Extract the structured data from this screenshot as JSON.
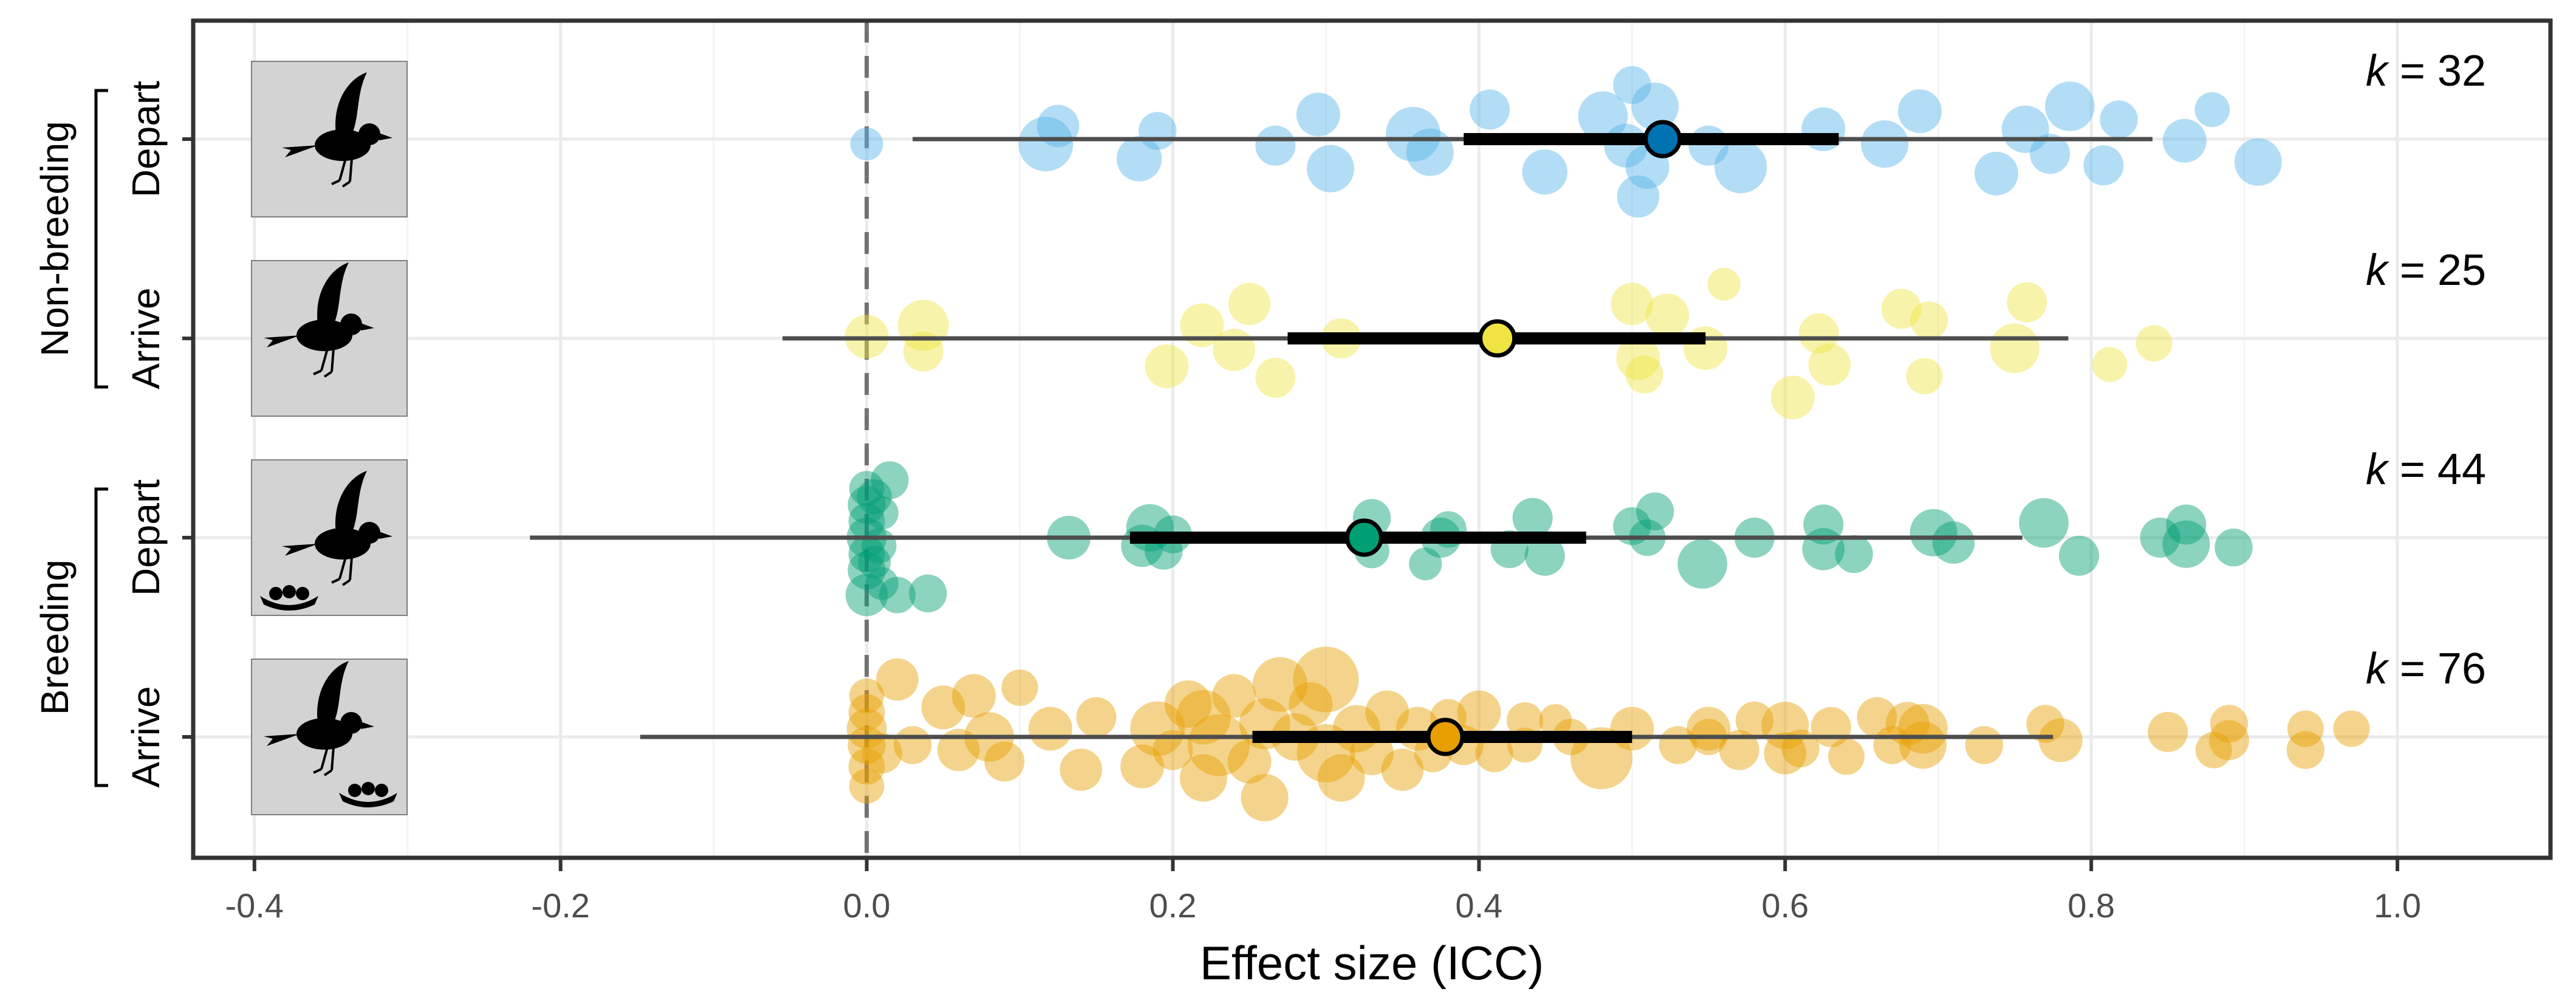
{
  "chart_data": {
    "type": "scatter",
    "subtype": "forest-orchard",
    "xlabel": "Effect size (ICC)",
    "xlim": [
      -0.44,
      1.1
    ],
    "xticks": [
      -0.4,
      -0.2,
      0.0,
      0.2,
      0.4,
      0.6,
      0.8,
      1.0
    ],
    "xtick_labels": [
      "-0.4",
      "-0.2",
      "0.0",
      "0.2",
      "0.4",
      "0.6",
      "0.8",
      "1.0"
    ],
    "reference_line": 0.0,
    "grid": true,
    "groups": [
      {
        "label": "Non-breeding",
        "rows": [
          "Depart",
          "Arrive"
        ]
      },
      {
        "label": "Breeding",
        "rows": [
          "Depart",
          "Arrive"
        ]
      }
    ],
    "series": [
      {
        "group": "Non-breeding",
        "row": "Depart",
        "k_label": "k = 32",
        "icon": "bird-departing-icon",
        "color": "#0072B2",
        "point_color": "#56B4E9",
        "estimate": 0.52,
        "ci": [
          0.39,
          0.635
        ],
        "pi": [
          0.03,
          0.84
        ],
        "points": [
          [
            0.0,
            0.03,
            0.15
          ],
          [
            0.117,
            0.03,
            0.45
          ],
          [
            0.125,
            -0.08,
            0.28
          ],
          [
            0.178,
            0.12,
            0.32
          ],
          [
            0.19,
            -0.05,
            0.22
          ],
          [
            0.267,
            0.04,
            0.25
          ],
          [
            0.295,
            -0.15,
            0.3
          ],
          [
            0.303,
            0.18,
            0.35
          ],
          [
            0.357,
            -0.03,
            0.45
          ],
          [
            0.368,
            0.08,
            0.35
          ],
          [
            0.407,
            -0.18,
            0.25
          ],
          [
            0.443,
            0.2,
            0.32
          ],
          [
            0.481,
            -0.14,
            0.38
          ],
          [
            0.496,
            0.04,
            0.3
          ],
          [
            0.5,
            -0.33,
            0.22
          ],
          [
            0.504,
            0.35,
            0.28
          ],
          [
            0.51,
            0.17,
            0.3
          ],
          [
            0.515,
            -0.2,
            0.35
          ],
          [
            0.55,
            0.04,
            0.25
          ],
          [
            0.571,
            0.17,
            0.42
          ],
          [
            0.625,
            -0.06,
            0.3
          ],
          [
            0.665,
            0.03,
            0.35
          ],
          [
            0.688,
            -0.17,
            0.3
          ],
          [
            0.738,
            0.21,
            0.3
          ],
          [
            0.757,
            -0.06,
            0.35
          ],
          [
            0.773,
            0.09,
            0.25
          ],
          [
            0.786,
            -0.2,
            0.38
          ],
          [
            0.808,
            0.16,
            0.25
          ],
          [
            0.818,
            -0.12,
            0.22
          ],
          [
            0.861,
            0.01,
            0.3
          ],
          [
            0.879,
            -0.18,
            0.18
          ],
          [
            0.909,
            0.14,
            0.35
          ]
        ]
      },
      {
        "group": "Non-breeding",
        "row": "Arrive",
        "k_label": "k = 25",
        "icon": "bird-arriving-icon",
        "color": "#F0E442",
        "point_color": "#F0E442",
        "estimate": 0.412,
        "ci": [
          0.275,
          0.548
        ],
        "pi": [
          -0.055,
          0.785
        ],
        "points": [
          [
            0.0,
            -0.01,
            0.3
          ],
          [
            0.037,
            -0.08,
            0.4
          ],
          [
            0.037,
            0.08,
            0.25
          ],
          [
            0.196,
            0.17,
            0.3
          ],
          [
            0.219,
            -0.08,
            0.3
          ],
          [
            0.24,
            0.07,
            0.28
          ],
          [
            0.25,
            -0.21,
            0.28
          ],
          [
            0.267,
            0.24,
            0.25
          ],
          [
            0.31,
            0.0,
            0.25
          ],
          [
            0.5,
            -0.21,
            0.28
          ],
          [
            0.504,
            0.12,
            0.3
          ],
          [
            0.508,
            0.22,
            0.22
          ],
          [
            0.523,
            -0.14,
            0.3
          ],
          [
            0.548,
            0.06,
            0.3
          ],
          [
            0.56,
            -0.33,
            0.15
          ],
          [
            0.605,
            0.36,
            0.3
          ],
          [
            0.622,
            -0.03,
            0.25
          ],
          [
            0.629,
            0.16,
            0.28
          ],
          [
            0.676,
            -0.18,
            0.25
          ],
          [
            0.691,
            0.23,
            0.2
          ],
          [
            0.694,
            -0.11,
            0.22
          ],
          [
            0.75,
            0.06,
            0.38
          ],
          [
            0.758,
            -0.22,
            0.25
          ],
          [
            0.812,
            0.16,
            0.18
          ],
          [
            0.841,
            0.03,
            0.2
          ]
        ]
      },
      {
        "group": "Breeding",
        "row": "Depart",
        "k_label": "k = 44",
        "icon": "bird-departing-nest-icon",
        "color": "#009E73",
        "point_color": "#009E73",
        "estimate": 0.325,
        "ci": [
          0.172,
          0.47
        ],
        "pi": [
          -0.22,
          0.755
        ],
        "points": [
          [
            0.0,
            -0.3,
            0.18
          ],
          [
            0.0,
            -0.2,
            0.22
          ],
          [
            0.0,
            -0.1,
            0.2
          ],
          [
            0.0,
            0.0,
            0.25
          ],
          [
            0.0,
            0.1,
            0.2
          ],
          [
            0.0,
            0.2,
            0.22
          ],
          [
            0.0,
            0.35,
            0.28
          ],
          [
            0.005,
            -0.25,
            0.18
          ],
          [
            0.005,
            0.15,
            0.15
          ],
          [
            0.008,
            0.05,
            0.18
          ],
          [
            0.01,
            -0.15,
            0.15
          ],
          [
            0.01,
            0.28,
            0.15
          ],
          [
            0.015,
            -0.35,
            0.22
          ],
          [
            0.02,
            0.35,
            0.2
          ],
          [
            0.04,
            0.34,
            0.22
          ],
          [
            0.132,
            0.0,
            0.3
          ],
          [
            0.18,
            0.05,
            0.28
          ],
          [
            0.185,
            -0.06,
            0.35
          ],
          [
            0.194,
            0.08,
            0.22
          ],
          [
            0.33,
            -0.12,
            0.22
          ],
          [
            0.365,
            0.16,
            0.15
          ],
          [
            0.375,
            0.0,
            0.25
          ],
          [
            0.42,
            0.07,
            0.22
          ],
          [
            0.435,
            -0.12,
            0.25
          ],
          [
            0.443,
            0.11,
            0.25
          ],
          [
            0.5,
            -0.07,
            0.22
          ],
          [
            0.51,
            0.0,
            0.2
          ],
          [
            0.515,
            -0.16,
            0.22
          ],
          [
            0.546,
            0.16,
            0.38
          ],
          [
            0.58,
            0.0,
            0.25
          ],
          [
            0.625,
            -0.08,
            0.25
          ],
          [
            0.625,
            0.07,
            0.28
          ],
          [
            0.645,
            0.1,
            0.22
          ],
          [
            0.697,
            -0.03,
            0.35
          ],
          [
            0.71,
            0.03,
            0.28
          ],
          [
            0.769,
            -0.09,
            0.38
          ],
          [
            0.792,
            0.11,
            0.25
          ],
          [
            0.845,
            0.0,
            0.25
          ],
          [
            0.862,
            0.04,
            0.35
          ],
          [
            0.862,
            -0.08,
            0.25
          ],
          [
            0.893,
            0.06,
            0.22
          ],
          [
            0.2,
            -0.02,
            0.22
          ],
          [
            0.33,
            0.08,
            0.18
          ],
          [
            0.38,
            -0.05,
            0.2
          ]
        ]
      },
      {
        "group": "Breeding",
        "row": "Arrive",
        "k_label": "k = 76",
        "icon": "bird-arriving-nest-icon",
        "color": "#E69F00",
        "point_color": "#E69F00",
        "estimate": 0.378,
        "ci": [
          0.252,
          0.5
        ],
        "pi": [
          -0.148,
          0.775
        ],
        "points": [
          [
            0.0,
            -0.25,
            0.18
          ],
          [
            0.0,
            -0.15,
            0.2
          ],
          [
            0.0,
            -0.05,
            0.25
          ],
          [
            0.0,
            0.05,
            0.22
          ],
          [
            0.0,
            0.18,
            0.2
          ],
          [
            0.0,
            0.3,
            0.18
          ],
          [
            0.01,
            0.1,
            0.25
          ],
          [
            0.02,
            -0.35,
            0.28
          ],
          [
            0.03,
            0.05,
            0.22
          ],
          [
            0.05,
            -0.18,
            0.3
          ],
          [
            0.06,
            0.08,
            0.28
          ],
          [
            0.07,
            -0.25,
            0.3
          ],
          [
            0.08,
            0.0,
            0.38
          ],
          [
            0.09,
            0.15,
            0.25
          ],
          [
            0.1,
            -0.3,
            0.2
          ],
          [
            0.12,
            -0.05,
            0.3
          ],
          [
            0.14,
            0.2,
            0.28
          ],
          [
            0.15,
            -0.12,
            0.25
          ],
          [
            0.18,
            0.18,
            0.3
          ],
          [
            0.19,
            -0.05,
            0.45
          ],
          [
            0.2,
            0.08,
            0.25
          ],
          [
            0.21,
            -0.2,
            0.35
          ],
          [
            0.22,
            0.25,
            0.35
          ],
          [
            0.22,
            -0.12,
            0.45
          ],
          [
            0.23,
            0.05,
            0.55
          ],
          [
            0.24,
            -0.25,
            0.3
          ],
          [
            0.25,
            0.15,
            0.3
          ],
          [
            0.26,
            -0.08,
            0.4
          ],
          [
            0.26,
            0.37,
            0.35
          ],
          [
            0.27,
            -0.32,
            0.45
          ],
          [
            0.28,
            0.0,
            0.35
          ],
          [
            0.29,
            -0.2,
            0.3
          ],
          [
            0.3,
            -0.35,
            0.6
          ],
          [
            0.3,
            0.1,
            0.5
          ],
          [
            0.31,
            0.25,
            0.35
          ],
          [
            0.32,
            -0.05,
            0.35
          ],
          [
            0.33,
            0.1,
            0.3
          ],
          [
            0.34,
            -0.15,
            0.3
          ],
          [
            0.35,
            0.2,
            0.28
          ],
          [
            0.36,
            -0.05,
            0.3
          ],
          [
            0.37,
            0.1,
            0.22
          ],
          [
            0.38,
            -0.12,
            0.2
          ],
          [
            0.39,
            0.05,
            0.25
          ],
          [
            0.4,
            -0.15,
            0.3
          ],
          [
            0.41,
            0.1,
            0.22
          ],
          [
            0.43,
            -0.1,
            0.2
          ],
          [
            0.43,
            0.05,
            0.18
          ],
          [
            0.45,
            -0.1,
            0.15
          ],
          [
            0.46,
            0.0,
            0.2
          ],
          [
            0.48,
            0.13,
            0.55
          ],
          [
            0.5,
            -0.05,
            0.3
          ],
          [
            0.53,
            0.05,
            0.22
          ],
          [
            0.55,
            -0.05,
            0.3
          ],
          [
            0.57,
            0.08,
            0.25
          ],
          [
            0.58,
            -0.1,
            0.22
          ],
          [
            0.6,
            0.1,
            0.28
          ],
          [
            0.6,
            -0.07,
            0.35
          ],
          [
            0.61,
            0.07,
            0.22
          ],
          [
            0.63,
            -0.06,
            0.25
          ],
          [
            0.64,
            0.12,
            0.2
          ],
          [
            0.66,
            -0.12,
            0.25
          ],
          [
            0.67,
            0.05,
            0.22
          ],
          [
            0.68,
            -0.08,
            0.3
          ],
          [
            0.69,
            0.05,
            0.35
          ],
          [
            0.69,
            -0.05,
            0.38
          ],
          [
            0.73,
            0.05,
            0.22
          ],
          [
            0.77,
            -0.08,
            0.22
          ],
          [
            0.78,
            0.02,
            0.3
          ],
          [
            0.85,
            -0.03,
            0.25
          ],
          [
            0.88,
            0.08,
            0.2
          ],
          [
            0.89,
            -0.08,
            0.22
          ],
          [
            0.89,
            0.02,
            0.25
          ],
          [
            0.94,
            0.08,
            0.22
          ],
          [
            0.94,
            -0.05,
            0.2
          ],
          [
            0.97,
            -0.05,
            0.2
          ],
          [
            0.55,
            0.0,
            0.2
          ]
        ]
      }
    ]
  }
}
